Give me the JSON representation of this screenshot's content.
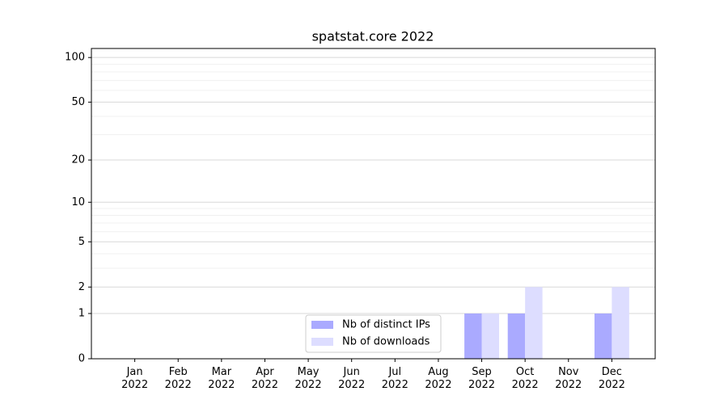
{
  "chart_data": {
    "type": "bar",
    "title": "spatstat.core 2022",
    "categories": [
      "Jan 2022",
      "Feb 2022",
      "Mar 2022",
      "Apr 2022",
      "May 2022",
      "Jun 2022",
      "Jul 2022",
      "Aug 2022",
      "Sep 2022",
      "Oct 2022",
      "Nov 2022",
      "Dec 2022"
    ],
    "series": [
      {
        "name": "Nb of distinct IPs",
        "color": "#aaaaff",
        "values": [
          0,
          0,
          0,
          0,
          0,
          0,
          0,
          0,
          1,
          1,
          0,
          1
        ]
      },
      {
        "name": "Nb of downloads",
        "color": "#ddddff",
        "values": [
          0,
          0,
          0,
          0,
          0,
          0,
          0,
          0,
          1,
          2,
          0,
          2
        ]
      }
    ],
    "yscale": "log1p",
    "ylim": [
      0,
      115
    ],
    "yticks": [
      0,
      1,
      2,
      5,
      10,
      20,
      50,
      100
    ],
    "minor_yticks": [
      3,
      4,
      6,
      7,
      8,
      9,
      30,
      40,
      60,
      70,
      80,
      90
    ],
    "grid": true,
    "legend": "lower center"
  }
}
